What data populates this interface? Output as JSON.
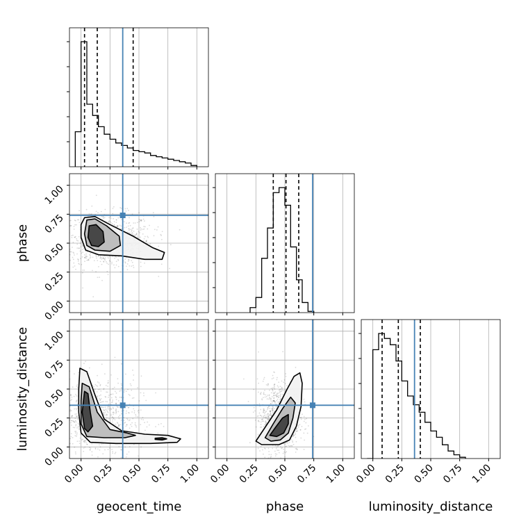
{
  "chart_data": {
    "type": "corner",
    "parameters": [
      "geocent_time",
      "phase",
      "luminosity_distance"
    ],
    "axis_range": [
      -0.1,
      1.1
    ],
    "tick_values": [
      0.0,
      0.25,
      0.5,
      0.75,
      1.0
    ],
    "tick_labels": [
      "0.00",
      "0.25",
      "0.50",
      "0.75",
      "1.00"
    ],
    "grid": true,
    "colors": {
      "truth": "#4682b4",
      "contour": "#000000",
      "hist": "#000000",
      "grid": "#b0b0b0"
    },
    "truths": {
      "geocent_time": 0.36,
      "phase": 0.74,
      "luminosity_distance": 0.36
    },
    "histograms": [
      {
        "parameter": "geocent_time",
        "bin_edges": [
          -0.05,
          0.0,
          0.05,
          0.1,
          0.15,
          0.2,
          0.25,
          0.3,
          0.35,
          0.4,
          0.45,
          0.5,
          0.55,
          0.6,
          0.65,
          0.7,
          0.75,
          0.8,
          0.85,
          0.9,
          0.95,
          1.0
        ],
        "counts": [
          0.28,
          1.0,
          0.5,
          0.41,
          0.32,
          0.26,
          0.22,
          0.19,
          0.17,
          0.15,
          0.13,
          0.12,
          0.11,
          0.09,
          0.08,
          0.07,
          0.06,
          0.05,
          0.04,
          0.03,
          0.01
        ],
        "quantiles": [
          0.03,
          0.14,
          0.45
        ]
      },
      {
        "parameter": "phase",
        "bin_edges": [
          0.2,
          0.25,
          0.3,
          0.35,
          0.4,
          0.45,
          0.5,
          0.55,
          0.6,
          0.65,
          0.7,
          0.75
        ],
        "counts": [
          0.04,
          0.12,
          0.43,
          0.67,
          0.95,
          0.99,
          0.85,
          0.52,
          0.26,
          0.08,
          0.01
        ],
        "quantiles": [
          0.4,
          0.51,
          0.62
        ]
      },
      {
        "parameter": "luminosity_distance",
        "bin_edges": [
          -0.05,
          0.0,
          0.05,
          0.1,
          0.15,
          0.2,
          0.25,
          0.3,
          0.35,
          0.4,
          0.45,
          0.5,
          0.55,
          0.6,
          0.65,
          0.7,
          0.75,
          0.8
        ],
        "counts": [
          0.0,
          0.87,
          1.0,
          0.96,
          0.91,
          0.78,
          0.62,
          0.5,
          0.43,
          0.37,
          0.29,
          0.22,
          0.17,
          0.11,
          0.06,
          0.03,
          0.01
        ],
        "quantiles": [
          0.08,
          0.22,
          0.41
        ]
      }
    ],
    "density_panels": [
      {
        "x": "geocent_time",
        "y": "phase",
        "scatter_center": [
          0.22,
          0.52
        ],
        "scatter_spread": [
          0.2,
          0.12
        ],
        "contours": [
          [
            [
              0.03,
              0.72
            ],
            [
              0.12,
              0.73
            ],
            [
              0.25,
              0.66
            ],
            [
              0.45,
              0.56
            ],
            [
              0.62,
              0.46
            ],
            [
              0.72,
              0.42
            ],
            [
              0.7,
              0.36
            ],
            [
              0.55,
              0.36
            ],
            [
              0.35,
              0.39
            ],
            [
              0.15,
              0.4
            ],
            [
              0.04,
              0.44
            ],
            [
              0.0,
              0.55
            ],
            [
              0.0,
              0.66
            ]
          ],
          [
            [
              0.05,
              0.7
            ],
            [
              0.12,
              0.71
            ],
            [
              0.22,
              0.65
            ],
            [
              0.33,
              0.56
            ],
            [
              0.34,
              0.48
            ],
            [
              0.25,
              0.43
            ],
            [
              0.12,
              0.44
            ],
            [
              0.05,
              0.48
            ],
            [
              0.03,
              0.58
            ]
          ],
          [
            [
              0.07,
              0.65
            ],
            [
              0.13,
              0.66
            ],
            [
              0.19,
              0.6
            ],
            [
              0.2,
              0.51
            ],
            [
              0.15,
              0.47
            ],
            [
              0.09,
              0.48
            ],
            [
              0.06,
              0.55
            ]
          ]
        ]
      },
      {
        "x": "geocent_time",
        "y": "luminosity_distance",
        "scatter_center": [
          0.12,
          0.25
        ],
        "scatter_spread": [
          0.2,
          0.18
        ],
        "contours": [
          [
            [
              -0.01,
              0.68
            ],
            [
              0.05,
              0.65
            ],
            [
              0.12,
              0.45
            ],
            [
              0.2,
              0.24
            ],
            [
              0.35,
              0.14
            ],
            [
              0.55,
              0.11
            ],
            [
              0.75,
              0.1
            ],
            [
              0.86,
              0.07
            ],
            [
              0.83,
              0.04
            ],
            [
              0.6,
              0.03
            ],
            [
              0.3,
              0.03
            ],
            [
              0.08,
              0.04
            ],
            [
              0.0,
              0.12
            ],
            [
              -0.02,
              0.3
            ],
            [
              -0.02,
              0.5
            ]
          ],
          [
            [
              0.01,
              0.55
            ],
            [
              0.07,
              0.52
            ],
            [
              0.14,
              0.3
            ],
            [
              0.25,
              0.15
            ],
            [
              0.4,
              0.12
            ],
            [
              0.47,
              0.1
            ],
            [
              0.38,
              0.08
            ],
            [
              0.2,
              0.08
            ],
            [
              0.05,
              0.09
            ],
            [
              0.0,
              0.2
            ],
            [
              0.0,
              0.4
            ]
          ],
          [
            [
              0.03,
              0.48
            ],
            [
              0.06,
              0.46
            ],
            [
              0.08,
              0.3
            ],
            [
              0.1,
              0.18
            ],
            [
              0.06,
              0.13
            ],
            [
              0.03,
              0.16
            ],
            [
              0.01,
              0.3
            ]
          ],
          [
            [
              0.64,
              0.075
            ],
            [
              0.7,
              0.08
            ],
            [
              0.74,
              0.07
            ],
            [
              0.7,
              0.06
            ],
            [
              0.64,
              0.065
            ]
          ]
        ]
      },
      {
        "x": "phase",
        "y": "luminosity_distance",
        "scatter_center": [
          0.45,
          0.25
        ],
        "scatter_spread": [
          0.09,
          0.16
        ],
        "contours": [
          [
            [
              0.25,
              0.05
            ],
            [
              0.33,
              0.17
            ],
            [
              0.43,
              0.32
            ],
            [
              0.52,
              0.5
            ],
            [
              0.58,
              0.61
            ],
            [
              0.63,
              0.64
            ],
            [
              0.65,
              0.55
            ],
            [
              0.64,
              0.35
            ],
            [
              0.6,
              0.18
            ],
            [
              0.54,
              0.06
            ],
            [
              0.45,
              0.02
            ],
            [
              0.3,
              0.02
            ]
          ],
          [
            [
              0.33,
              0.08
            ],
            [
              0.4,
              0.2
            ],
            [
              0.48,
              0.33
            ],
            [
              0.55,
              0.43
            ],
            [
              0.59,
              0.38
            ],
            [
              0.57,
              0.25
            ],
            [
              0.53,
              0.12
            ],
            [
              0.46,
              0.06
            ],
            [
              0.38,
              0.05
            ]
          ],
          [
            [
              0.37,
              0.1
            ],
            [
              0.42,
              0.17
            ],
            [
              0.48,
              0.25
            ],
            [
              0.53,
              0.28
            ],
            [
              0.53,
              0.2
            ],
            [
              0.49,
              0.12
            ],
            [
              0.43,
              0.09
            ]
          ]
        ]
      }
    ]
  }
}
